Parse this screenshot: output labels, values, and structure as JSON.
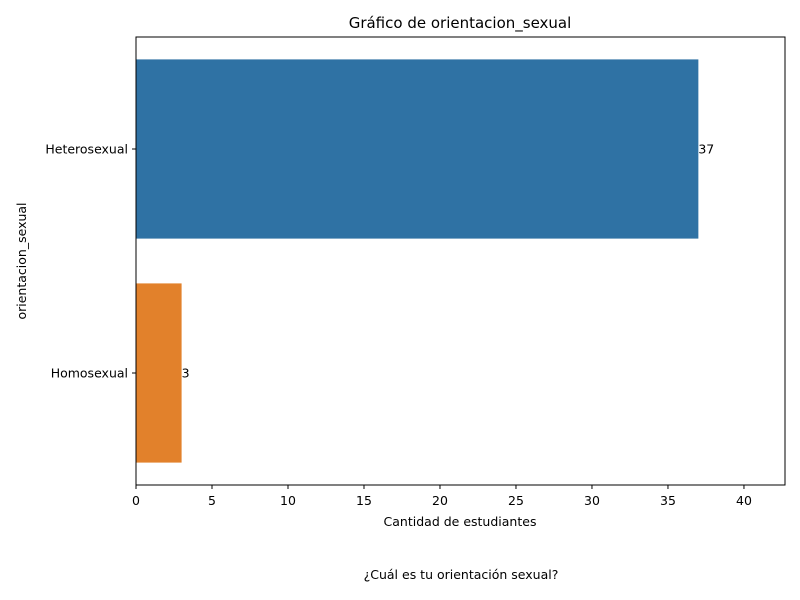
{
  "chart_data": {
    "type": "bar",
    "orientation": "horizontal",
    "title": "Gráfico de orientacion_sexual",
    "xlabel": "Cantidad de estudiantes",
    "ylabel": "orientacion_sexual",
    "categories": [
      "Heterosexual",
      "Homosexual"
    ],
    "values": [
      37,
      3
    ],
    "value_labels": [
      "37",
      "3"
    ],
    "colors": [
      "#2f72a4",
      "#e2812b"
    ],
    "xlim": [
      0,
      42.7
    ],
    "xticks": [
      0,
      5,
      10,
      15,
      20,
      25,
      30,
      35,
      40
    ],
    "xtick_labels": [
      "0",
      "5",
      "10",
      "15",
      "20",
      "25",
      "30",
      "35",
      "40"
    ],
    "grid": false,
    "legend": "none"
  },
  "caption": "¿Cuál es tu orientación sexual?"
}
